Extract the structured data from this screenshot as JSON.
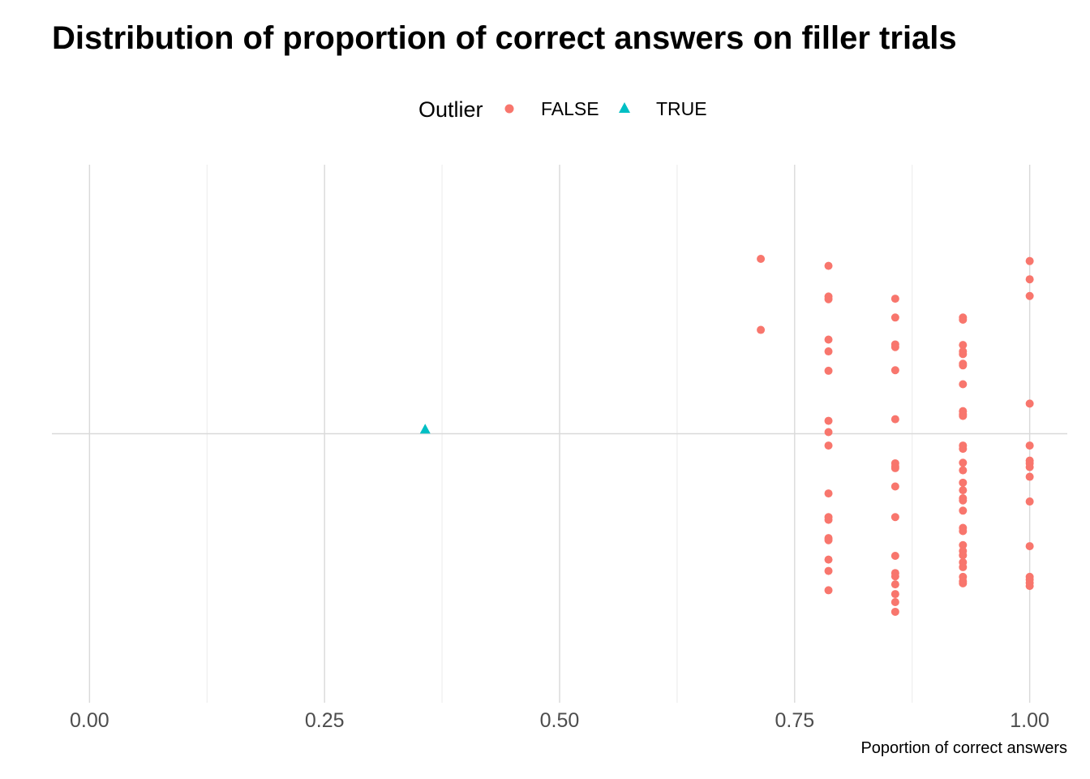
{
  "chart_data": {
    "type": "scatter",
    "title": "Distribution of proportion of correct answers on filler trials",
    "xlabel": "Poportion of correct answers",
    "ylabel": "",
    "xlim": [
      -0.04,
      1.04
    ],
    "ylim": [
      -0.5,
      0.5
    ],
    "x_ticks": [
      "0.00",
      "0.25",
      "0.50",
      "0.75",
      "1.00"
    ],
    "x_tick_values": [
      0,
      0.25,
      0.5,
      0.75,
      1.0
    ],
    "grid": true,
    "legend": {
      "title": "Outlier",
      "position": "top",
      "entries": [
        {
          "label": "FALSE",
          "shape": "circle",
          "color": "#F8766D"
        },
        {
          "label": "TRUE",
          "shape": "triangle",
          "color": "#00BFC4"
        }
      ]
    },
    "series": [
      {
        "name": "FALSE",
        "shape": "circle",
        "color": "#F8766D",
        "points": [
          [
            0.714,
            0.325
          ],
          [
            0.714,
            0.193
          ],
          [
            0.786,
            0.312
          ],
          [
            0.786,
            0.255
          ],
          [
            0.786,
            0.25
          ],
          [
            0.786,
            0.175
          ],
          [
            0.786,
            0.153
          ],
          [
            0.786,
            0.117
          ],
          [
            0.786,
            0.024
          ],
          [
            0.786,
            0.003
          ],
          [
            0.786,
            -0.022
          ],
          [
            0.786,
            -0.111
          ],
          [
            0.786,
            -0.155
          ],
          [
            0.786,
            -0.16
          ],
          [
            0.786,
            -0.194
          ],
          [
            0.786,
            -0.198
          ],
          [
            0.786,
            -0.234
          ],
          [
            0.786,
            -0.255
          ],
          [
            0.786,
            -0.291
          ],
          [
            0.857,
            0.251
          ],
          [
            0.857,
            0.216
          ],
          [
            0.857,
            0.166
          ],
          [
            0.857,
            0.161
          ],
          [
            0.857,
            0.118
          ],
          [
            0.857,
            0.027
          ],
          [
            0.857,
            -0.055
          ],
          [
            0.857,
            -0.061
          ],
          [
            0.857,
            -0.064
          ],
          [
            0.857,
            -0.098
          ],
          [
            0.857,
            -0.155
          ],
          [
            0.857,
            -0.227
          ],
          [
            0.857,
            -0.259
          ],
          [
            0.857,
            -0.265
          ],
          [
            0.857,
            -0.28
          ],
          [
            0.857,
            -0.298
          ],
          [
            0.857,
            -0.313
          ],
          [
            0.857,
            -0.331
          ],
          [
            0.929,
            0.216
          ],
          [
            0.929,
            0.212
          ],
          [
            0.929,
            0.165
          ],
          [
            0.929,
            0.153
          ],
          [
            0.929,
            0.148
          ],
          [
            0.929,
            0.13
          ],
          [
            0.929,
            0.127
          ],
          [
            0.929,
            0.092
          ],
          [
            0.929,
            0.042
          ],
          [
            0.929,
            0.036
          ],
          [
            0.929,
            0.033
          ],
          [
            0.929,
            -0.022
          ],
          [
            0.929,
            -0.028
          ],
          [
            0.929,
            -0.054
          ],
          [
            0.929,
            -0.068
          ],
          [
            0.929,
            -0.091
          ],
          [
            0.929,
            -0.105
          ],
          [
            0.929,
            -0.12
          ],
          [
            0.929,
            -0.124
          ],
          [
            0.929,
            -0.143
          ],
          [
            0.929,
            -0.175
          ],
          [
            0.929,
            -0.181
          ],
          [
            0.929,
            -0.207
          ],
          [
            0.929,
            -0.218
          ],
          [
            0.929,
            -0.226
          ],
          [
            0.929,
            -0.239
          ],
          [
            0.929,
            -0.248
          ],
          [
            0.929,
            -0.266
          ],
          [
            0.929,
            -0.274
          ],
          [
            0.929,
            -0.278
          ],
          [
            1.0,
            0.321
          ],
          [
            1.0,
            0.287
          ],
          [
            1.0,
            0.256
          ],
          [
            1.0,
            0.056
          ],
          [
            1.0,
            -0.022
          ],
          [
            1.0,
            -0.05
          ],
          [
            1.0,
            -0.055
          ],
          [
            1.0,
            -0.062
          ],
          [
            1.0,
            -0.08
          ],
          [
            1.0,
            -0.126
          ],
          [
            1.0,
            -0.209
          ],
          [
            1.0,
            -0.266
          ],
          [
            1.0,
            -0.271
          ],
          [
            1.0,
            -0.277
          ],
          [
            1.0,
            -0.283
          ]
        ]
      },
      {
        "name": "TRUE",
        "shape": "triangle",
        "color": "#00BFC4",
        "points": [
          [
            0.357,
            0.008
          ]
        ]
      }
    ]
  }
}
